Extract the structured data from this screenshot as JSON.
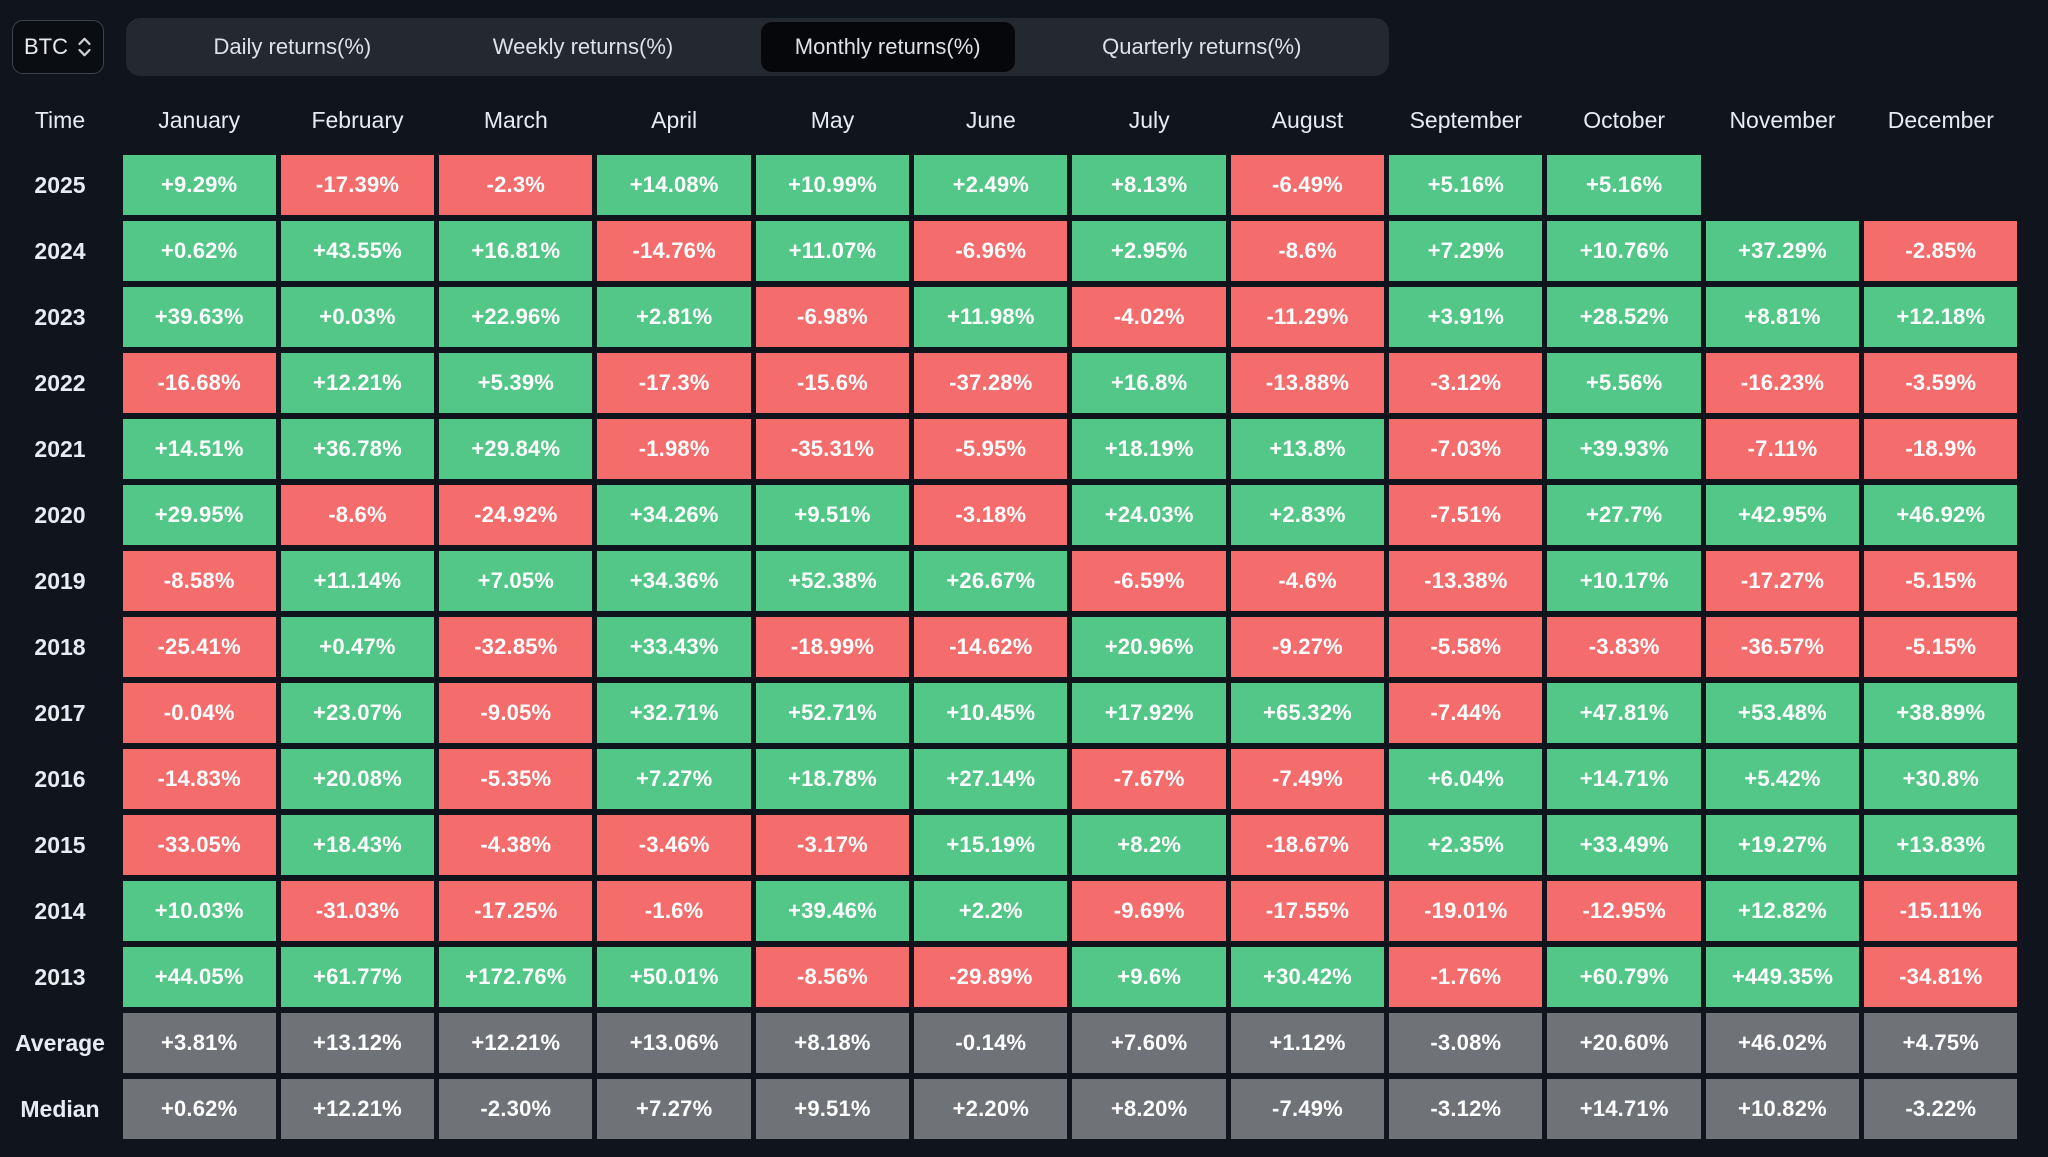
{
  "controls": {
    "symbol_select": {
      "value": "BTC"
    },
    "tabs": [
      {
        "label": "Daily returns(%)",
        "active": false
      },
      {
        "label": "Weekly returns(%)",
        "active": false
      },
      {
        "label": "Monthly returns(%)",
        "active": true
      },
      {
        "label": "Quarterly returns(%)",
        "active": false
      }
    ]
  },
  "colors": {
    "background": "#10141c",
    "positive": "#53c787",
    "negative": "#f56c6c",
    "summary": "#6f7277",
    "active_tab_bg": "#05070a",
    "tabbar_bg": "#24282f"
  },
  "table": {
    "time_header": "Time",
    "columns": [
      "January",
      "February",
      "March",
      "April",
      "May",
      "June",
      "July",
      "August",
      "September",
      "October",
      "November",
      "December"
    ],
    "rows": [
      {
        "label": "2025",
        "type": "year",
        "values": [
          "+9.29%",
          "-17.39%",
          "-2.3%",
          "+14.08%",
          "+10.99%",
          "+2.49%",
          "+8.13%",
          "-6.49%",
          "+5.16%",
          "+5.16%",
          "",
          ""
        ]
      },
      {
        "label": "2024",
        "type": "year",
        "values": [
          "+0.62%",
          "+43.55%",
          "+16.81%",
          "-14.76%",
          "+11.07%",
          "-6.96%",
          "+2.95%",
          "-8.6%",
          "+7.29%",
          "+10.76%",
          "+37.29%",
          "-2.85%"
        ]
      },
      {
        "label": "2023",
        "type": "year",
        "values": [
          "+39.63%",
          "+0.03%",
          "+22.96%",
          "+2.81%",
          "-6.98%",
          "+11.98%",
          "-4.02%",
          "-11.29%",
          "+3.91%",
          "+28.52%",
          "+8.81%",
          "+12.18%"
        ]
      },
      {
        "label": "2022",
        "type": "year",
        "values": [
          "-16.68%",
          "+12.21%",
          "+5.39%",
          "-17.3%",
          "-15.6%",
          "-37.28%",
          "+16.8%",
          "-13.88%",
          "-3.12%",
          "+5.56%",
          "-16.23%",
          "-3.59%"
        ]
      },
      {
        "label": "2021",
        "type": "year",
        "values": [
          "+14.51%",
          "+36.78%",
          "+29.84%",
          "-1.98%",
          "-35.31%",
          "-5.95%",
          "+18.19%",
          "+13.8%",
          "-7.03%",
          "+39.93%",
          "-7.11%",
          "-18.9%"
        ]
      },
      {
        "label": "2020",
        "type": "year",
        "values": [
          "+29.95%",
          "-8.6%",
          "-24.92%",
          "+34.26%",
          "+9.51%",
          "-3.18%",
          "+24.03%",
          "+2.83%",
          "-7.51%",
          "+27.7%",
          "+42.95%",
          "+46.92%"
        ]
      },
      {
        "label": "2019",
        "type": "year",
        "values": [
          "-8.58%",
          "+11.14%",
          "+7.05%",
          "+34.36%",
          "+52.38%",
          "+26.67%",
          "-6.59%",
          "-4.6%",
          "-13.38%",
          "+10.17%",
          "-17.27%",
          "-5.15%"
        ]
      },
      {
        "label": "2018",
        "type": "year",
        "values": [
          "-25.41%",
          "+0.47%",
          "-32.85%",
          "+33.43%",
          "-18.99%",
          "-14.62%",
          "+20.96%",
          "-9.27%",
          "-5.58%",
          "-3.83%",
          "-36.57%",
          "-5.15%"
        ]
      },
      {
        "label": "2017",
        "type": "year",
        "values": [
          "-0.04%",
          "+23.07%",
          "-9.05%",
          "+32.71%",
          "+52.71%",
          "+10.45%",
          "+17.92%",
          "+65.32%",
          "-7.44%",
          "+47.81%",
          "+53.48%",
          "+38.89%"
        ]
      },
      {
        "label": "2016",
        "type": "year",
        "values": [
          "-14.83%",
          "+20.08%",
          "-5.35%",
          "+7.27%",
          "+18.78%",
          "+27.14%",
          "-7.67%",
          "-7.49%",
          "+6.04%",
          "+14.71%",
          "+5.42%",
          "+30.8%"
        ]
      },
      {
        "label": "2015",
        "type": "year",
        "values": [
          "-33.05%",
          "+18.43%",
          "-4.38%",
          "-3.46%",
          "-3.17%",
          "+15.19%",
          "+8.2%",
          "-18.67%",
          "+2.35%",
          "+33.49%",
          "+19.27%",
          "+13.83%"
        ]
      },
      {
        "label": "2014",
        "type": "year",
        "values": [
          "+10.03%",
          "-31.03%",
          "-17.25%",
          "-1.6%",
          "+39.46%",
          "+2.2%",
          "-9.69%",
          "-17.55%",
          "-19.01%",
          "-12.95%",
          "+12.82%",
          "-15.11%"
        ]
      },
      {
        "label": "2013",
        "type": "year",
        "values": [
          "+44.05%",
          "+61.77%",
          "+172.76%",
          "+50.01%",
          "-8.56%",
          "-29.89%",
          "+9.6%",
          "+30.42%",
          "-1.76%",
          "+60.79%",
          "+449.35%",
          "-34.81%"
        ]
      },
      {
        "label": "Average",
        "type": "summary",
        "values": [
          "+3.81%",
          "+13.12%",
          "+12.21%",
          "+13.06%",
          "+8.18%",
          "-0.14%",
          "+7.60%",
          "+1.12%",
          "-3.08%",
          "+20.60%",
          "+46.02%",
          "+4.75%"
        ]
      },
      {
        "label": "Median",
        "type": "summary",
        "values": [
          "+0.62%",
          "+12.21%",
          "-2.30%",
          "+7.27%",
          "+9.51%",
          "+2.20%",
          "+8.20%",
          "-7.49%",
          "-3.12%",
          "+14.71%",
          "+10.82%",
          "-3.22%"
        ]
      }
    ]
  }
}
